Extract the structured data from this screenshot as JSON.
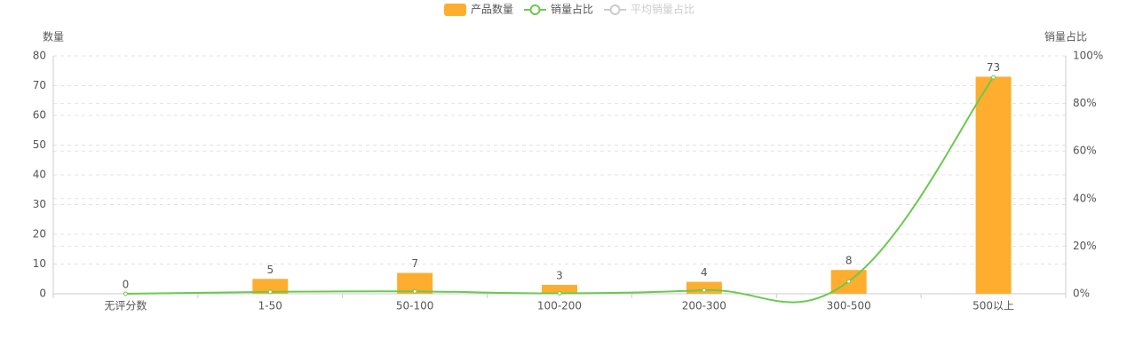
{
  "chart_data": {
    "type": "bar-line",
    "categories": [
      "无评分数",
      "1-50",
      "50-100",
      "100-200",
      "200-300",
      "300-500",
      "500以上"
    ],
    "series": [
      {
        "name": "产品数量",
        "type": "bar",
        "color": "#ffad2e",
        "values": [
          0,
          5,
          7,
          3,
          4,
          8,
          73
        ]
      },
      {
        "name": "销量占比",
        "type": "line",
        "axis": "y2",
        "color": "#6cc94f",
        "values": [
          0,
          0.8,
          1.0,
          0.2,
          1.5,
          5.2,
          91.0
        ]
      }
    ],
    "legend_inactive": [
      {
        "name": "平均销量占比",
        "color": "#cccccc"
      }
    ],
    "ylabel": "数量",
    "y2label": "销量占比",
    "ylim": [
      0,
      80
    ],
    "yticks": [
      0,
      10,
      20,
      30,
      40,
      50,
      60,
      70,
      80
    ],
    "y2lim": [
      0,
      100
    ],
    "y2ticks": [
      {
        "value": 0,
        "label": "0%"
      },
      {
        "value": 20,
        "label": "20%"
      },
      {
        "value": 40,
        "label": "40%"
      },
      {
        "value": 60,
        "label": "60%"
      },
      {
        "value": 80,
        "label": "80%"
      },
      {
        "value": 100,
        "label": "100%"
      }
    ],
    "grid": true,
    "bar_value_labels": true,
    "legend_position": "top"
  }
}
